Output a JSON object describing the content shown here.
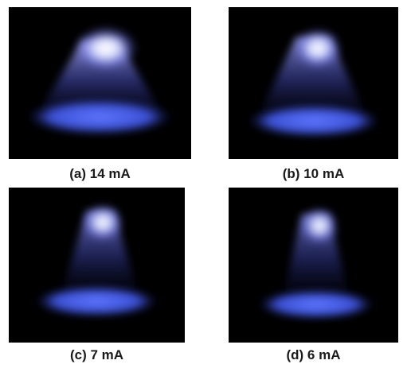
{
  "panels": [
    {
      "label": "(a) 14 mA"
    },
    {
      "label": "(b) 10 mA"
    },
    {
      "label": "(c) 7 mA"
    },
    {
      "label": "(d) 6 mA"
    }
  ],
  "colors": {
    "background": "#000000",
    "glow_core": "#ffffff",
    "glow_blue": "#4a5cff",
    "disk_blue": "#3f55e0"
  }
}
